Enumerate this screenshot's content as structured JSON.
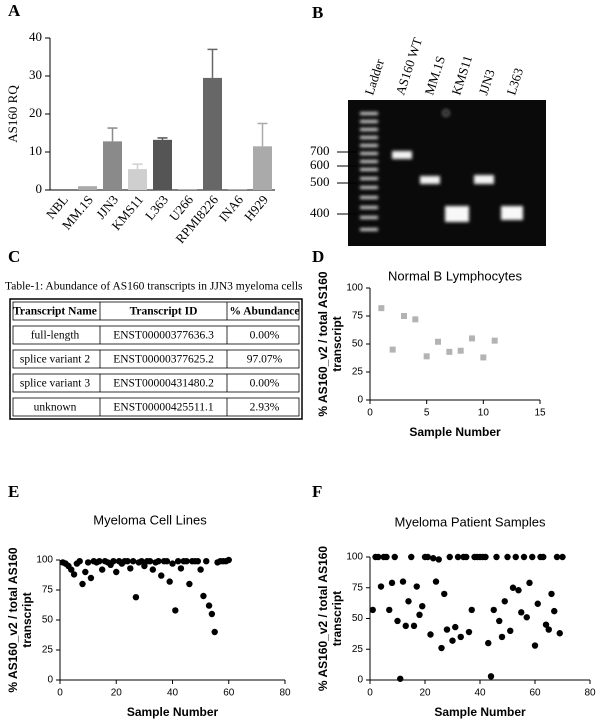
{
  "chart_data": [
    {
      "type": "bar",
      "panel": "A",
      "ylabel": "AS160 RQ",
      "categories": [
        "NBL",
        "MM.1S",
        "JJN3",
        "KMS11",
        "L363",
        "U266",
        "RPMI8226",
        "INA6",
        "H929"
      ],
      "values": [
        0,
        1,
        12.8,
        5.5,
        13.2,
        0.2,
        29.5,
        0.2,
        11.5
      ],
      "errors": [
        0,
        0,
        3.5,
        1.3,
        0.5,
        0,
        7.5,
        0,
        6
      ],
      "colors": [
        "#777777",
        "#aaaaaa",
        "#8a8a8a",
        "#cfcfcf",
        "#555555",
        "#999999",
        "#676767",
        "#999999",
        "#aaaaaa"
      ],
      "ylim": [
        0,
        40
      ],
      "yticks": [
        0,
        10,
        20,
        30,
        40
      ]
    },
    {
      "type": "scatter",
      "panel": "D",
      "title": "Normal B Lymphocytes",
      "xlabel": "Sample Number",
      "ylabel": [
        "% AS160_v2 / total  AS160",
        "transcript"
      ],
      "marker": "square",
      "color": "#b3b3b3",
      "x": [
        1,
        2,
        3,
        4,
        5,
        6,
        7,
        8,
        9,
        10,
        11
      ],
      "values": [
        82,
        45,
        75,
        72,
        39,
        52,
        43,
        44,
        55,
        38,
        53
      ],
      "xlim": [
        0,
        15
      ],
      "xticks": [
        0,
        5,
        10,
        15
      ],
      "ylim": [
        0,
        100
      ],
      "yticks": [
        0,
        25,
        50,
        75,
        100
      ]
    },
    {
      "type": "scatter",
      "panel": "E",
      "title": "Myeloma Cell Lines",
      "xlabel": "Sample Number",
      "ylabel": [
        "% AS160_v2 / total  AS160",
        "transcript"
      ],
      "marker": "circle",
      "color": "#000000",
      "x": [
        1,
        2,
        3,
        4,
        5,
        6,
        7,
        8,
        9,
        10,
        11,
        12,
        13,
        14,
        15,
        16,
        17,
        18,
        19,
        20,
        21,
        22,
        23,
        24,
        25,
        26,
        27,
        28,
        29,
        30,
        31,
        32,
        33,
        34,
        35,
        36,
        37,
        38,
        39,
        40,
        41,
        42,
        43,
        44,
        45,
        46,
        47,
        48,
        49,
        50,
        51,
        52,
        53,
        54,
        55,
        56,
        57,
        58,
        59,
        60
      ],
      "values": [
        98,
        97,
        95,
        92,
        88,
        97,
        99,
        80,
        90,
        98,
        85,
        99,
        98,
        99,
        92,
        99,
        98,
        96,
        99,
        90,
        99,
        97,
        99,
        99,
        93,
        99,
        69,
        98,
        99,
        95,
        99,
        99,
        92,
        98,
        99,
        87,
        99,
        99,
        82,
        97,
        58,
        99,
        93,
        99,
        99,
        80,
        99,
        99,
        99,
        92,
        70,
        99,
        62,
        55,
        40,
        98,
        99,
        99,
        99,
        100
      ],
      "xlim": [
        0,
        80
      ],
      "xticks": [
        0,
        20,
        40,
        60,
        80
      ],
      "ylim": [
        0,
        100
      ],
      "yticks": [
        0,
        25,
        50,
        75,
        100
      ]
    },
    {
      "type": "scatter",
      "panel": "F",
      "title": "Myeloma Patient Samples",
      "xlabel": "Sample Number",
      "ylabel": [
        "% AS160_v2 / total  AS160",
        "transcript"
      ],
      "marker": "circle",
      "color": "#000000",
      "x": [
        1,
        2,
        3,
        4,
        5,
        6,
        7,
        8,
        9,
        10,
        11,
        12,
        13,
        14,
        15,
        16,
        17,
        18,
        19,
        20,
        21,
        22,
        23,
        24,
        25,
        26,
        27,
        28,
        29,
        30,
        31,
        32,
        33,
        34,
        35,
        36,
        37,
        38,
        39,
        40,
        41,
        42,
        43,
        44,
        45,
        46,
        47,
        48,
        49,
        50,
        51,
        52,
        53,
        54,
        55,
        56,
        57,
        58,
        59,
        60,
        61,
        62,
        63,
        64,
        65,
        66,
        67,
        68,
        69,
        70
      ],
      "values": [
        57,
        100,
        100,
        76,
        100,
        100,
        57,
        79,
        100,
        48,
        1,
        80,
        44,
        64,
        100,
        44,
        76,
        53,
        60,
        100,
        100,
        37,
        99,
        80,
        98,
        26,
        70,
        41,
        100,
        32,
        43,
        100,
        35,
        100,
        100,
        39,
        57,
        100,
        100,
        100,
        100,
        100,
        30,
        3,
        57,
        100,
        48,
        35,
        64,
        100,
        40,
        75,
        100,
        73,
        55,
        100,
        51,
        79,
        100,
        28,
        62,
        100,
        100,
        45,
        41,
        70,
        56,
        100,
        38,
        100
      ],
      "xlim": [
        0,
        80
      ],
      "xticks": [
        0,
        20,
        40,
        60,
        80
      ],
      "ylim": [
        0,
        100
      ],
      "yticks": [
        0,
        25,
        50,
        75,
        100
      ]
    }
  ],
  "gel": {
    "panel": "B",
    "lanes": [
      "Ladder",
      "AS160 WT",
      "MM.1S",
      "KMS11",
      "JJN3",
      "L363"
    ],
    "sizes": [
      "700",
      "600",
      "500",
      "400"
    ]
  },
  "table": {
    "panel": "C",
    "caption": "Table-1: Abundance of AS160 transcripts in JJN3 myeloma cells",
    "header": [
      "Transcript Name",
      "Transcript ID",
      "% Abundance"
    ],
    "rows": [
      [
        "full-length",
        "ENST00000377636.3",
        "0.00%"
      ],
      [
        "splice variant 2",
        "ENST00000377625.2",
        "97.07%"
      ],
      [
        "splice variant 3",
        "ENST00000431480.2",
        "0.00%"
      ],
      [
        "unknown",
        "ENST00000425511.1",
        "2.93%"
      ]
    ]
  }
}
